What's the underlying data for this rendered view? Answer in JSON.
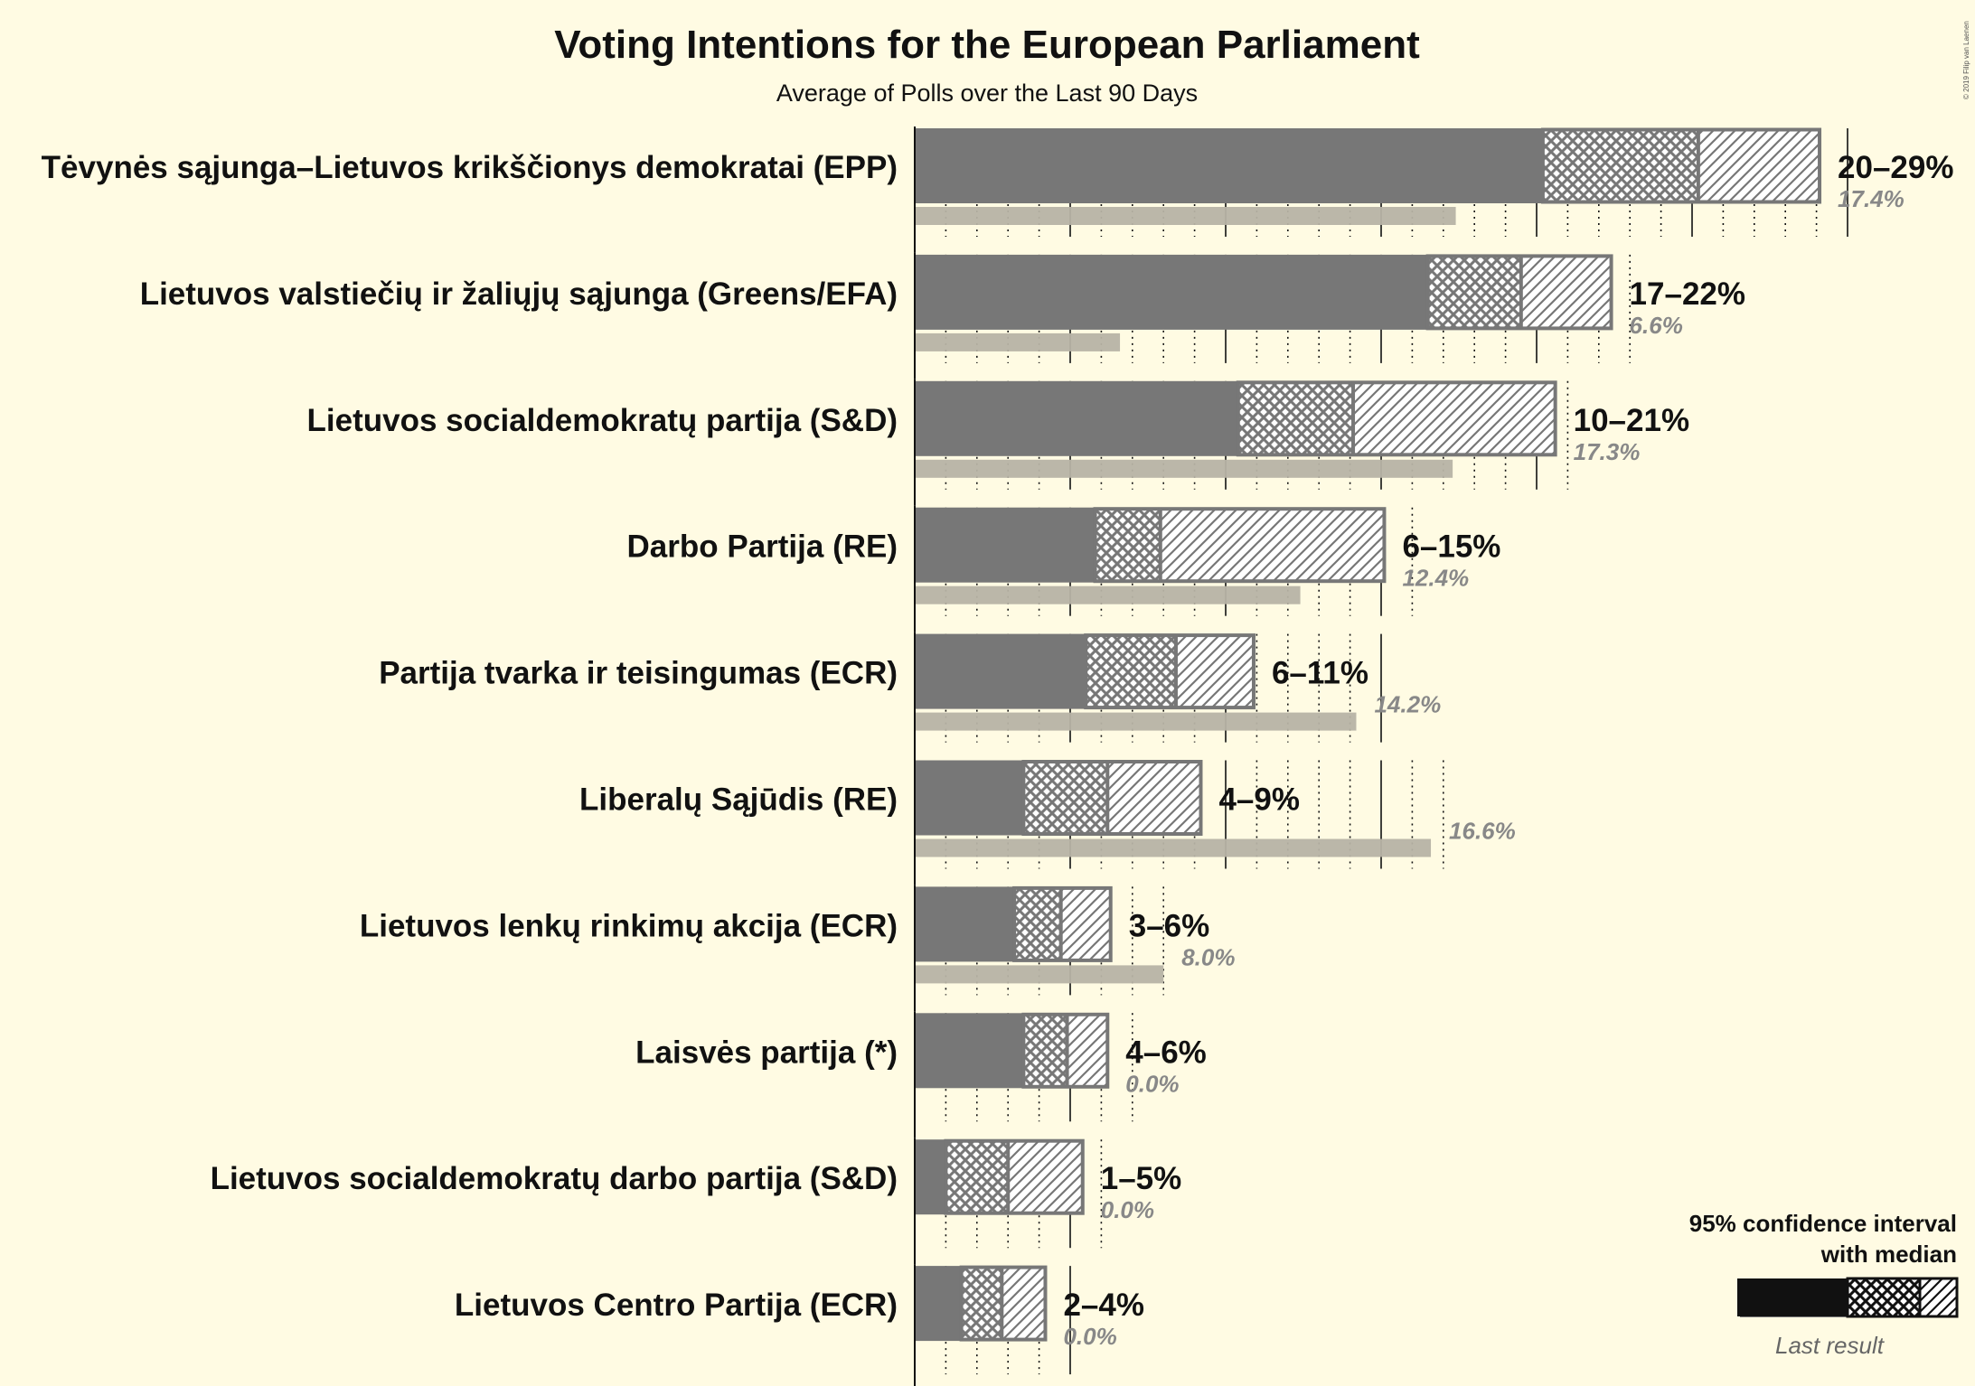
{
  "title": "Voting Intentions for the European Parliament",
  "subtitle": "Average of Polls over the Last 90 Days",
  "copyright": "© 2019 Filip van Laenen",
  "legend": {
    "line1": "95% confidence interval",
    "line2": "with median",
    "last_result": "Last result"
  },
  "colors": {
    "background": "#fffbe3",
    "bar": "#777777",
    "last_result": "#b7b3a5",
    "legend_bar": "#111111",
    "legend_last": "#777777"
  },
  "chart_data": {
    "type": "bar",
    "orientation": "horizontal",
    "unit": "%",
    "x_range": [
      0,
      30
    ],
    "grid": "dotted lines every 1%, solid every 5%",
    "series_meaning": {
      "ci_low": "lower bound of 95% confidence interval",
      "median": "median",
      "ci_high": "upper bound of 95% confidence interval",
      "last": "last result"
    },
    "parties": [
      {
        "name": "Tėvynės sąjunga–Lietuvos krikščionys demokratai (EPP)",
        "range_label": "20–29%",
        "last_label": "17.4%",
        "ci_low": 20.2,
        "median": 25.2,
        "ci_high": 29.1,
        "last": 17.4
      },
      {
        "name": "Lietuvos valstiečių ir žaliųjų sąjunga (Greens/EFA)",
        "range_label": "17–22%",
        "last_label": "6.6%",
        "ci_low": 16.5,
        "median": 19.5,
        "ci_high": 22.4,
        "last": 6.6
      },
      {
        "name": "Lietuvos socialdemokratų partija (S&D)",
        "range_label": "10–21%",
        "last_label": "17.3%",
        "ci_low": 10.4,
        "median": 14.1,
        "ci_high": 20.6,
        "last": 17.3
      },
      {
        "name": "Darbo Partija (RE)",
        "range_label": "6–15%",
        "last_label": "12.4%",
        "ci_low": 5.8,
        "median": 7.9,
        "ci_high": 15.1,
        "last": 12.4
      },
      {
        "name": "Partija tvarka ir teisingumas (ECR)",
        "range_label": "6–11%",
        "last_label": "14.2%",
        "ci_low": 5.5,
        "median": 8.4,
        "ci_high": 10.9,
        "last": 14.2
      },
      {
        "name": "Liberalų Sąjūdis (RE)",
        "range_label": "4–9%",
        "last_label": "16.6%",
        "ci_low": 3.5,
        "median": 6.2,
        "ci_high": 9.2,
        "last": 16.6
      },
      {
        "name": "Lietuvos lenkų rinkimų akcija (ECR)",
        "range_label": "3–6%",
        "last_label": "8.0%",
        "ci_low": 3.2,
        "median": 4.7,
        "ci_high": 6.3,
        "last": 8.0
      },
      {
        "name": "Laisvės partija (*)",
        "range_label": "4–6%",
        "last_label": "0.0%",
        "ci_low": 3.5,
        "median": 4.9,
        "ci_high": 6.2,
        "last": 0.0
      },
      {
        "name": "Lietuvos socialdemokratų darbo partija (S&D)",
        "range_label": "1–5%",
        "last_label": "0.0%",
        "ci_low": 1.0,
        "median": 3.0,
        "ci_high": 5.4,
        "last": 0.0
      },
      {
        "name": "Lietuvos Centro Partija (ECR)",
        "range_label": "2–4%",
        "last_label": "0.0%",
        "ci_low": 1.5,
        "median": 2.8,
        "ci_high": 4.2,
        "last": 0.0
      }
    ]
  }
}
